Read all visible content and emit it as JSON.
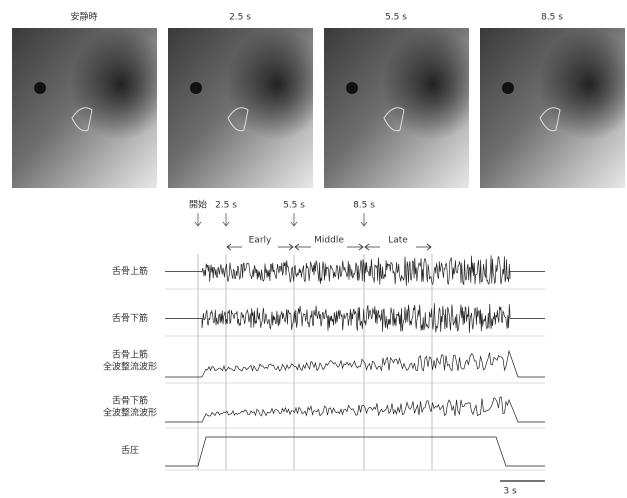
{
  "images": [
    {
      "label": "安静時"
    },
    {
      "label": "2.5 s"
    },
    {
      "label": "5.5 s"
    },
    {
      "label": "8.5 s"
    }
  ],
  "markers": [
    {
      "label": "開始"
    },
    {
      "label": "2.5 s"
    },
    {
      "label": "5.5 s"
    },
    {
      "label": "8.5 s"
    }
  ],
  "phases": [
    {
      "label": "Early"
    },
    {
      "label": "Middle"
    },
    {
      "label": "Late"
    }
  ],
  "traces": [
    {
      "label": [
        "舌骨上筋"
      ]
    },
    {
      "label": [
        "舌骨下筋"
      ]
    },
    {
      "label": [
        "舌骨上筋",
        "全波整流波形"
      ]
    },
    {
      "label": [
        "舌骨下筋",
        "全波整流波形"
      ]
    },
    {
      "label": [
        "舌圧"
      ]
    }
  ],
  "scale_bar": {
    "label": "3 s"
  }
}
